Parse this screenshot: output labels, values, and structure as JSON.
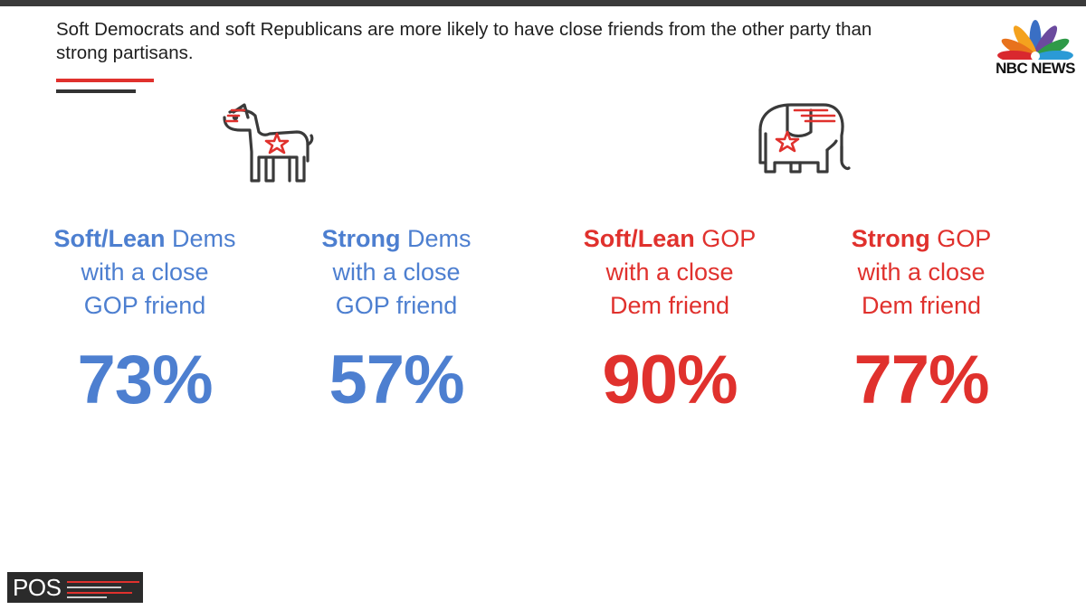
{
  "headline": "Soft Democrats and soft Republicans are more likely to have close friends from the other party than strong partisans.",
  "brand": {
    "logo_text": "NBC NEWS",
    "footer_logo_text": "POS"
  },
  "colors": {
    "dem_blue": "#4d7fd0",
    "gop_red": "#e0312d",
    "icon_gray": "#3a3a3a"
  },
  "icons": {
    "dem": "donkey-icon",
    "gop": "elephant-icon"
  },
  "stats": [
    {
      "party": "dem",
      "label_strong": "Soft/Lean",
      "label_line1_rest": " Dems",
      "label_line2": "with a close",
      "label_line3": "GOP friend",
      "value": "73%"
    },
    {
      "party": "dem",
      "label_strong": "Strong",
      "label_line1_rest": " Dems",
      "label_line2": "with a close",
      "label_line3": "GOP friend",
      "value": "57%"
    },
    {
      "party": "gop",
      "label_strong": "Soft/Lean",
      "label_line1_rest": " GOP",
      "label_line2": "with a close",
      "label_line3": "Dem friend",
      "value": "90%"
    },
    {
      "party": "gop",
      "label_strong": "Strong",
      "label_line1_rest": " GOP",
      "label_line2": "with a close",
      "label_line3": "Dem friend",
      "value": "77%"
    }
  ]
}
